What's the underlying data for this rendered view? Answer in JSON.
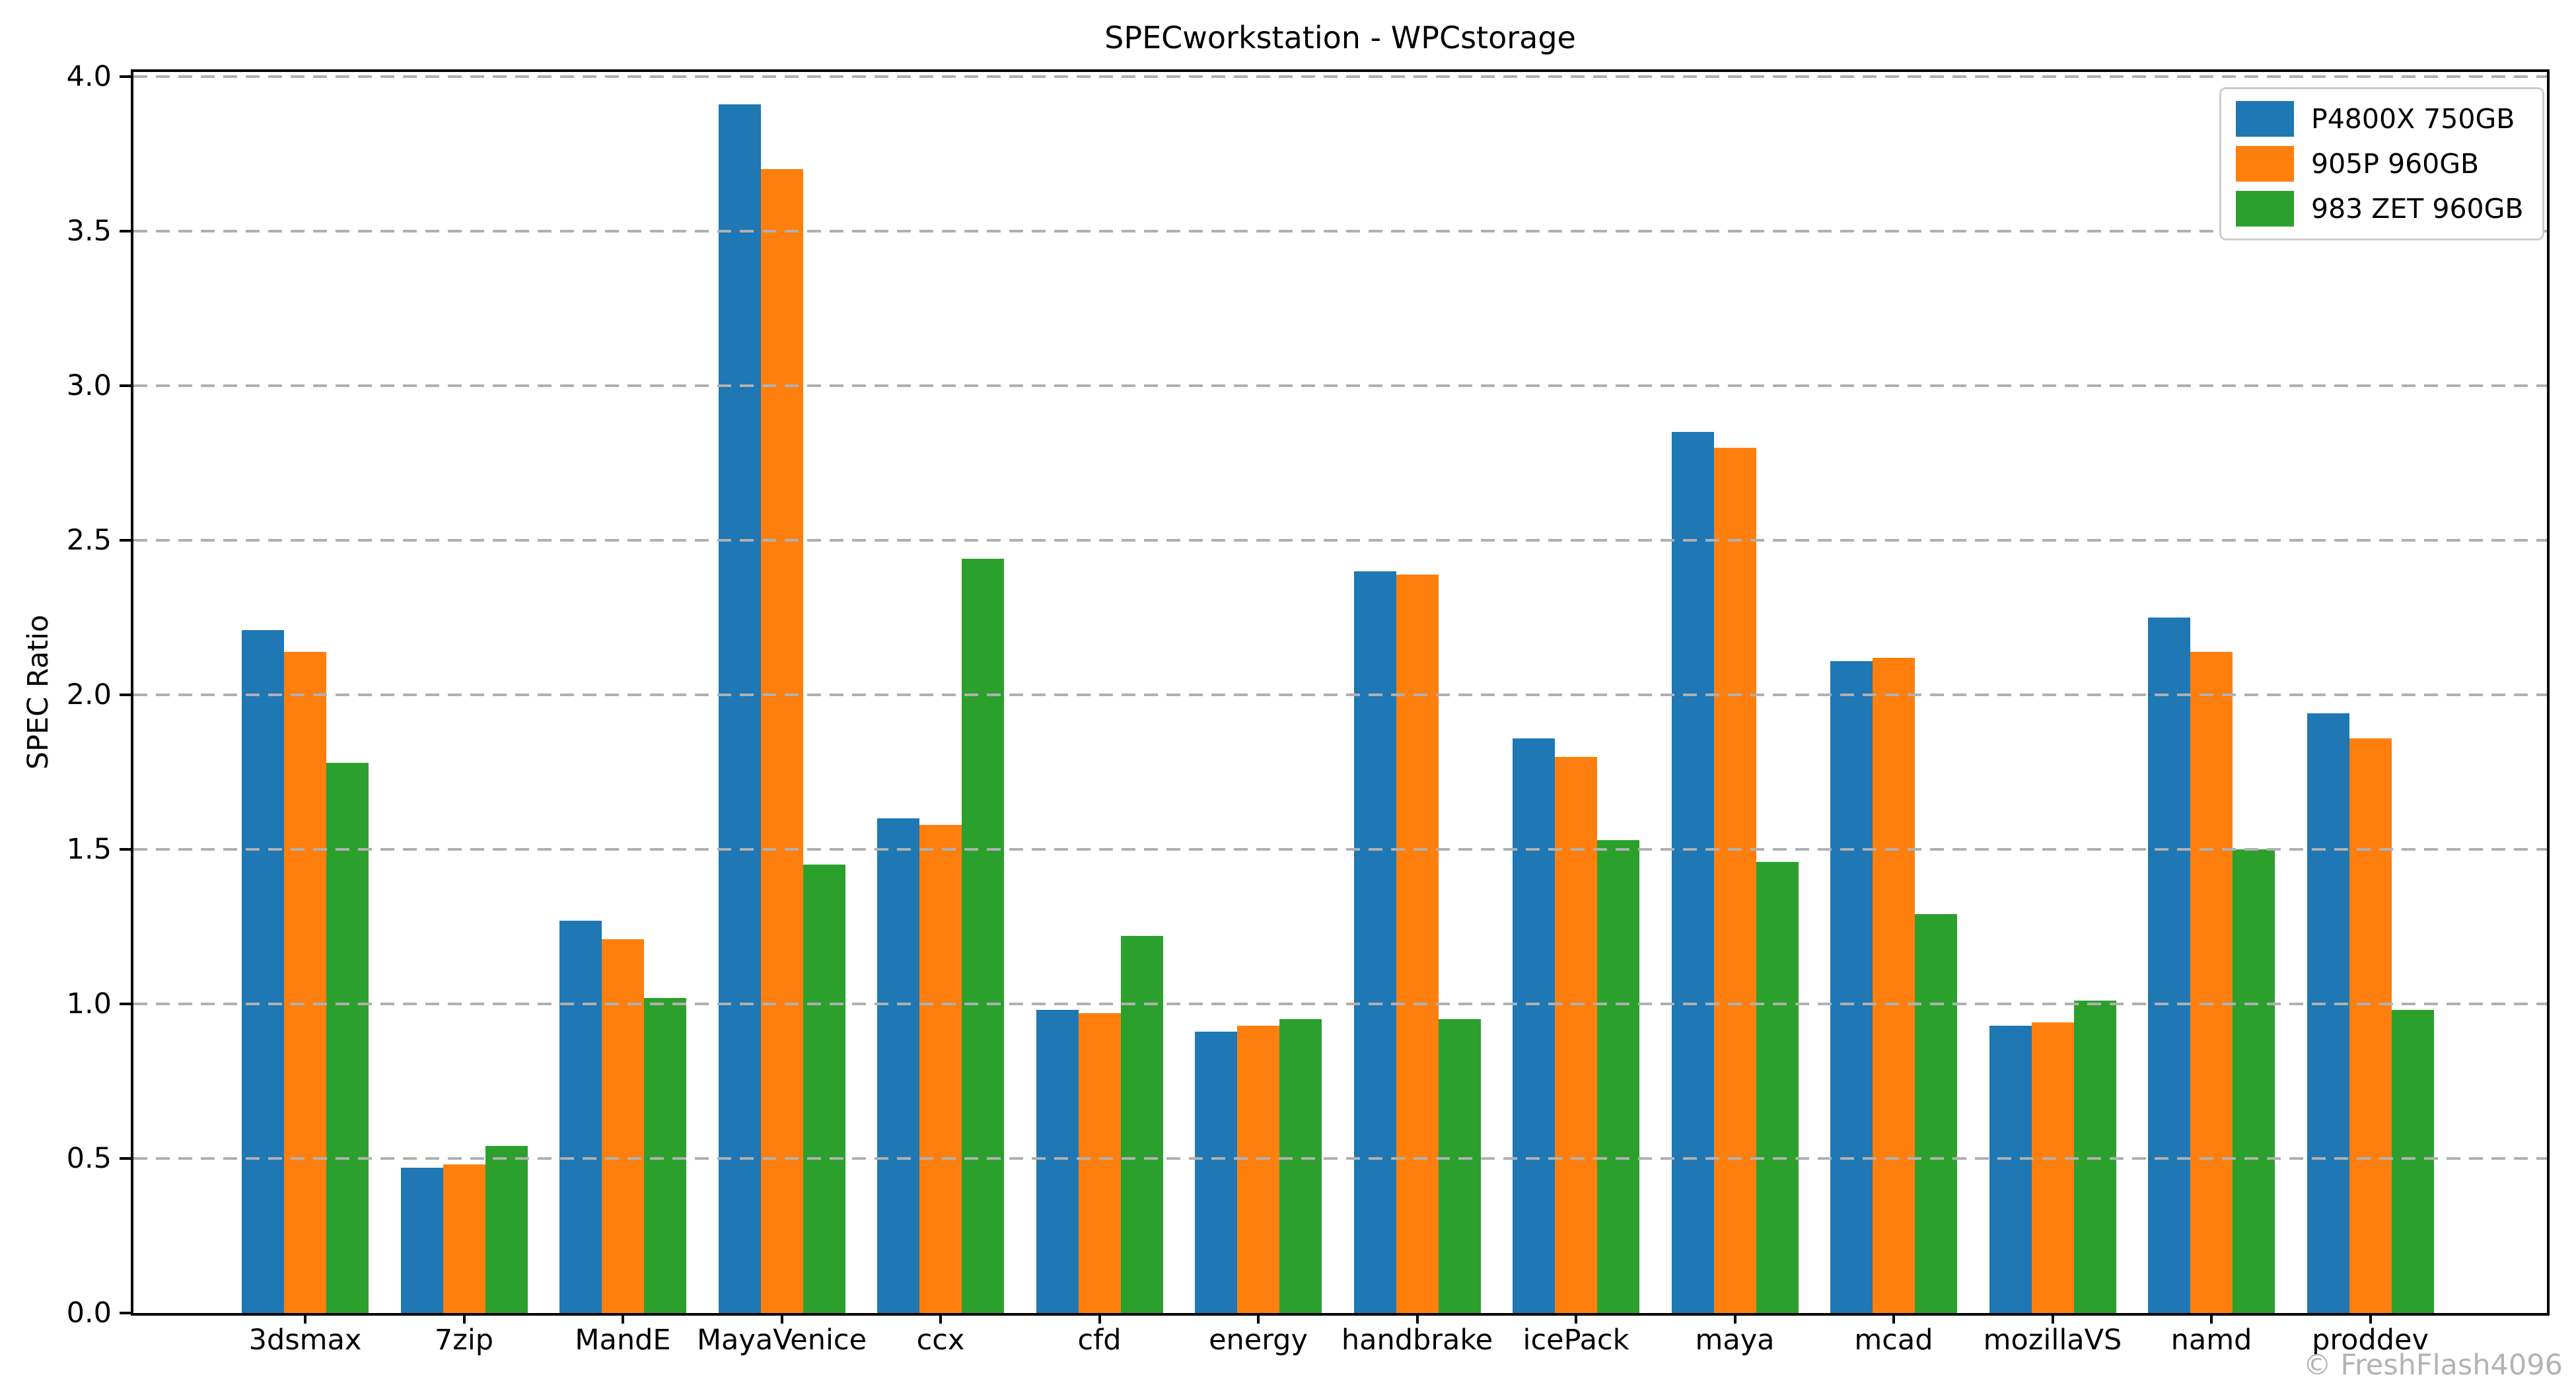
{
  "chart_data": {
    "type": "bar",
    "title": "SPECworkstation - WPCstorage",
    "ylabel": "SPEC Ratio",
    "xlabel": "",
    "categories": [
      "3dsmax",
      "7zip",
      "MandE",
      "MayaVenice",
      "ccx",
      "cfd",
      "energy",
      "handbrake",
      "icePack",
      "maya",
      "mcad",
      "mozillaVS",
      "namd",
      "proddev"
    ],
    "series": [
      {
        "name": "P4800X 750GB",
        "color": "#1f77b4",
        "values": [
          2.21,
          0.47,
          1.27,
          3.91,
          1.6,
          0.98,
          0.91,
          2.4,
          1.86,
          2.85,
          2.11,
          0.93,
          2.25,
          1.94
        ]
      },
      {
        "name": "905P 960GB",
        "color": "#ff7f0e",
        "values": [
          2.14,
          0.48,
          1.21,
          3.7,
          1.58,
          0.97,
          0.93,
          2.39,
          1.8,
          2.8,
          2.12,
          0.94,
          2.14,
          1.86
        ]
      },
      {
        "name": "983 ZET 960GB",
        "color": "#2ca02c",
        "values": [
          1.78,
          0.54,
          1.02,
          1.45,
          2.44,
          1.22,
          0.95,
          0.95,
          1.53,
          1.46,
          1.29,
          1.01,
          1.5,
          0.98
        ]
      }
    ],
    "ylim": [
      0,
      4.0
    ],
    "yticks": [
      "0.0",
      "0.5",
      "1.0",
      "1.5",
      "2.0",
      "2.5",
      "3.0",
      "3.5",
      "4.0"
    ],
    "grid": true,
    "grid_style": "dashed",
    "legend_position": "upper right",
    "watermark": "© FreshFlash4096",
    "colors": {
      "grid": "#b0b0b0",
      "spine": "#000000",
      "watermark": "#b3b3b3",
      "background": "#ffffff"
    }
  }
}
